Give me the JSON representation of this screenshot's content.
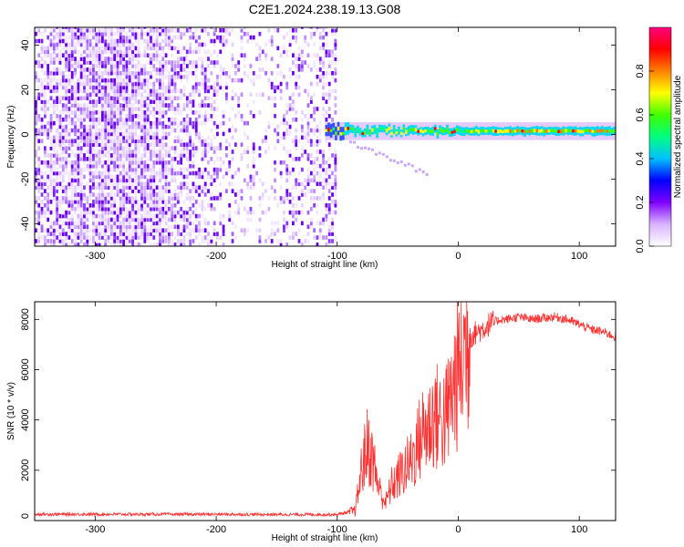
{
  "title": "C2E1.2024.238.19.13.G08",
  "chart_data": [
    {
      "type": "heatmap",
      "xlabel": "Height of straight line (km)",
      "ylabel": "Frequency (Hz)",
      "xlim": [
        -350,
        130
      ],
      "ylim": [
        -50,
        48
      ],
      "xticks": [
        -300,
        -200,
        -100,
        0,
        100
      ],
      "yticks": [
        -40,
        -20,
        0,
        20,
        40
      ],
      "colorbar": {
        "label": "Normalized spectral amplitude",
        "range": [
          0,
          1
        ],
        "ticks": [
          "0.0",
          "0.2",
          "0.4",
          "0.6",
          "0.8"
        ],
        "colors": [
          "#ffffff",
          "#d9b3ff",
          "#8000ff",
          "#0000ff",
          "#00c0ff",
          "#00ff80",
          "#40ff00",
          "#ffff00",
          "#ff8000",
          "#ff0000",
          "#ff0080"
        ]
      },
      "noise_region": {
        "x": [
          -350,
          -100
        ],
        "y": [
          -50,
          48
        ]
      },
      "signal_track": {
        "x": [
          -110,
          130
        ],
        "center_freq": 1.5,
        "width_hz": 4
      }
    },
    {
      "type": "line",
      "xlabel": "Height of straight line (km)",
      "ylabel": "SNR (10 * v/v)",
      "xlim": [
        -350,
        130
      ],
      "ylim": [
        0,
        8700
      ],
      "xticks": [
        -300,
        -200,
        -100,
        0,
        100
      ],
      "yticks": [
        0,
        2000,
        4000,
        6000,
        8000
      ],
      "color": "#ff3030",
      "series": [
        {
          "x": [
            -350,
            -300,
            -250,
            -200,
            -150,
            -100,
            -85,
            -80,
            -75,
            -70,
            -65,
            -60,
            -55,
            -50,
            -45,
            -40,
            -35,
            -30,
            -25,
            -20,
            -15,
            -10,
            -5,
            0,
            5,
            10,
            15,
            20,
            25,
            30,
            35,
            40,
            50,
            60,
            70,
            80,
            90,
            100,
            110,
            120,
            130
          ],
          "values": [
            250,
            250,
            250,
            250,
            240,
            240,
            400,
            2000,
            3000,
            2300,
            1200,
            700,
            1400,
            1700,
            2000,
            2300,
            2800,
            3500,
            3700,
            4200,
            4000,
            4100,
            5000,
            6000,
            6800,
            7300,
            7500,
            7600,
            7800,
            7900,
            8000,
            8000,
            8100,
            8000,
            8050,
            8100,
            8000,
            7800,
            7600,
            7500,
            7300
          ]
        }
      ]
    }
  ]
}
